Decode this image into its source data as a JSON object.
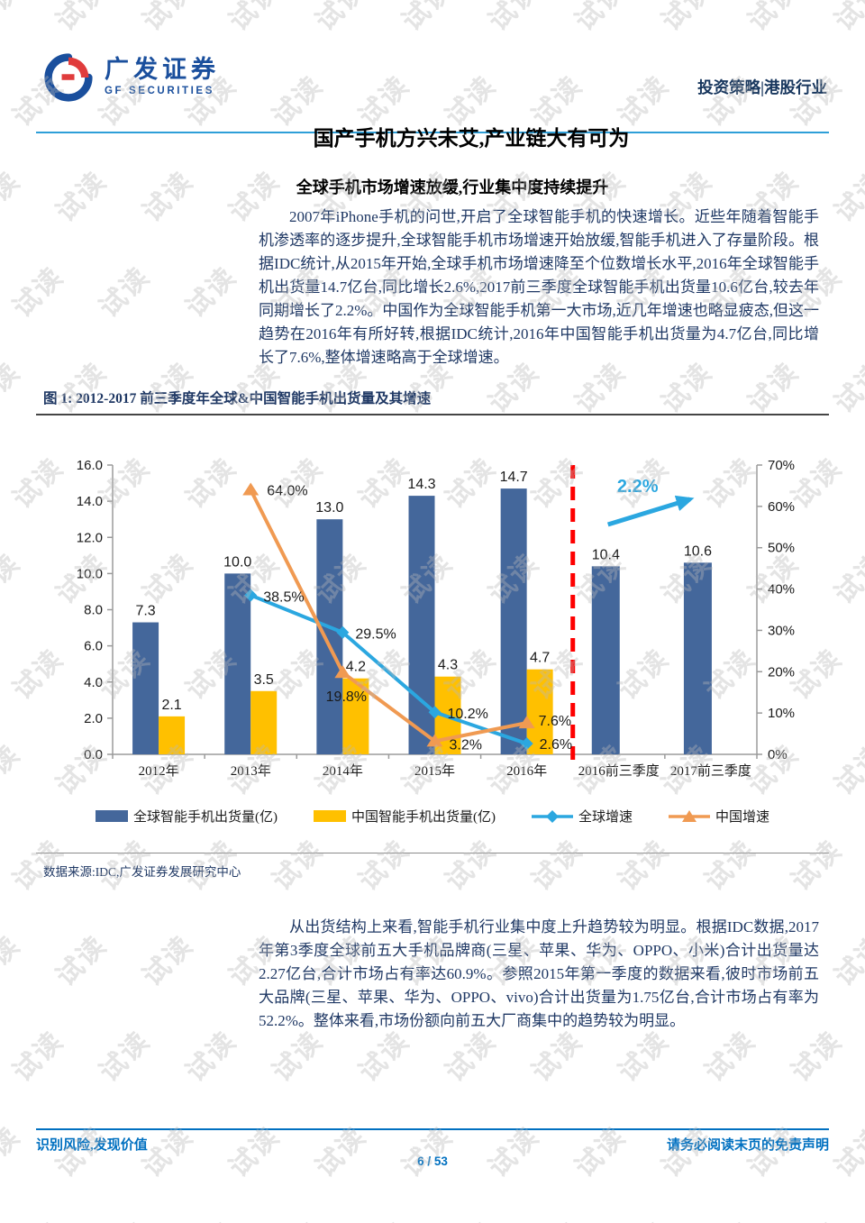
{
  "watermark": {
    "text": "试读"
  },
  "header": {
    "logo_cn": "广发证券",
    "logo_en": "GF SECURITIES",
    "right_label": "投资策略|港股行业"
  },
  "title": "国产手机方兴未艾,产业链大有可为",
  "subtitle": "全球手机市场增速放缓,行业集中度持续提升",
  "paragraphs": {
    "p1": "2007年iPhone手机的问世,开启了全球智能手机的快速增长。近些年随着智能手机渗透率的逐步提升,全球智能手机市场增速开始放缓,智能手机进入了存量阶段。根据IDC统计,从2015年开始,全球手机市场增速降至个位数增长水平,2016年全球智能手机出货量14.7亿台,同比增长2.6%,2017前三季度全球智能手机出货量10.6亿台,较去年同期增长了2.2%。中国作为全球智能手机第一大市场,近几年增速也略显疲态,但这一趋势在2016年有所好转,根据IDC统计,2016年中国智能手机出货量为4.7亿台,同比增长了7.6%,整体增速略高于全球增速。",
    "p2": "从出货结构上来看,智能手机行业集中度上升趋势较为明显。根据IDC数据,2017年第3季度全球前五大手机品牌商(三星、苹果、华为、OPPO、小米)合计出货量达2.27亿台,合计市场占有率达60.9%。参照2015年第一季度的数据来看,彼时市场前五大品牌(三星、苹果、华为、OPPO、vivo)合计出货量为1.75亿台,合计市场占有率为52.2%。整体来看,市场份额向前五大厂商集中的趋势较为明显。"
  },
  "figure": {
    "caption": "图 1:  2012-2017 前三季度年全球&中国智能手机出货量及其增速",
    "source": "数据来源:IDC,广发证券发展研究中心"
  },
  "chart_data": {
    "type": "bar+line",
    "title": "2012-2017 前三季度年全球&中国智能手机出货量及其增速",
    "categories": [
      "2012年",
      "2013年",
      "2014年",
      "2015年",
      "2016年",
      "2016前三季度",
      "2017前三季度"
    ],
    "series": [
      {
        "name": "全球智能手机出货量(亿)",
        "type": "bar",
        "axis": "left",
        "color": "#44679B",
        "values": [
          7.3,
          10.0,
          13.0,
          14.3,
          14.7,
          10.4,
          10.6
        ]
      },
      {
        "name": "中国智能手机出货量(亿)",
        "type": "bar",
        "axis": "left",
        "color": "#FFC000",
        "values": [
          2.1,
          3.5,
          4.2,
          4.3,
          4.7,
          null,
          null
        ]
      },
      {
        "name": "全球增速",
        "type": "line",
        "axis": "right",
        "marker": "diamond",
        "color": "#2BA7E0",
        "values": [
          null,
          38.5,
          29.5,
          10.2,
          2.6,
          null,
          null
        ]
      },
      {
        "name": "中国增速",
        "type": "line",
        "axis": "right",
        "marker": "triangle",
        "color": "#F09A52",
        "values": [
          null,
          64.0,
          19.8,
          3.2,
          7.6,
          null,
          null
        ]
      }
    ],
    "left_axis": {
      "min": 0,
      "max": 16,
      "step": 2,
      "format": "one_decimal"
    },
    "right_axis": {
      "min": 0,
      "max": 70,
      "step": 10,
      "suffix": "%"
    },
    "grid": false,
    "legend_position": "bottom",
    "annotations": {
      "separator": {
        "after_category": "2016年",
        "color": "#FE0000",
        "style": "dashed"
      },
      "arrow": {
        "label": "2.2%",
        "color": "#2BA7E0",
        "direction": "up-right"
      }
    }
  },
  "footer": {
    "left": "识别风险,发现价值",
    "right": "请务必阅读末页的免责声明",
    "page": "6 / 53"
  }
}
